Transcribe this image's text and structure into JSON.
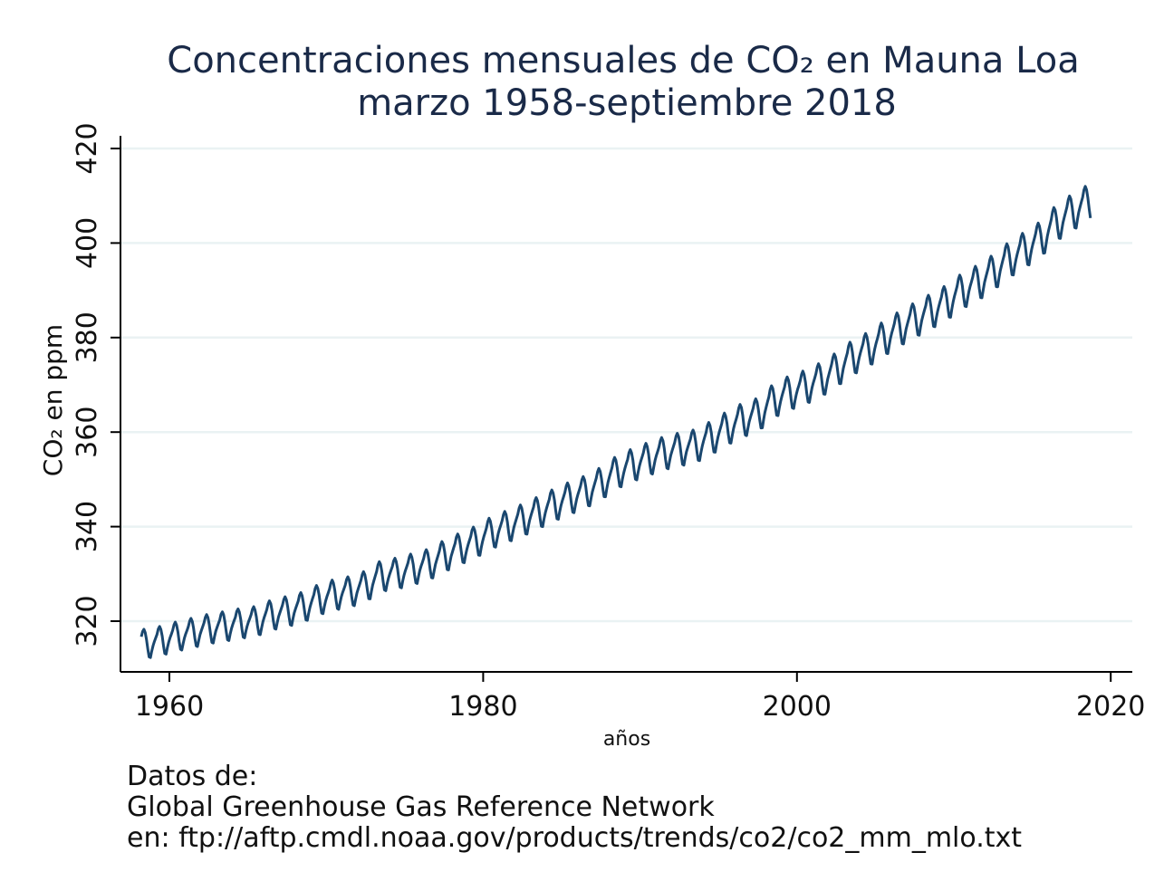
{
  "chart_data": {
    "type": "line",
    "title": "Concentraciones mensuales de CO₂ en Mauna Loa",
    "subtitle": "marzo 1958-septiembre 2018",
    "xlabel": "años",
    "ylabel": "CO₂ en ppm",
    "xlim": [
      1958,
      2021.5
    ],
    "ylim": [
      309,
      423
    ],
    "x_ticks": [
      1960,
      1980,
      2000,
      2020
    ],
    "y_ticks": [
      320,
      340,
      360,
      380,
      400,
      420
    ],
    "grid": "horizontal",
    "legend": "none",
    "line_color": "#1a476f",
    "grid_color": "#eaf2f3",
    "start": "1958-03",
    "end": "2018-09",
    "series": [
      {
        "annual_mean_years": [
          1958,
          1959,
          1960,
          1961,
          1962,
          1963,
          1964,
          1965,
          1966,
          1967,
          1968,
          1969,
          1970,
          1971,
          1972,
          1973,
          1974,
          1975,
          1976,
          1977,
          1978,
          1979,
          1980,
          1981,
          1982,
          1983,
          1984,
          1985,
          1986,
          1987,
          1988,
          1989,
          1990,
          1991,
          1992,
          1993,
          1994,
          1995,
          1996,
          1997,
          1998,
          1999,
          2000,
          2001,
          2002,
          2003,
          2004,
          2005,
          2006,
          2007,
          2008,
          2009,
          2010,
          2011,
          2012,
          2013,
          2014,
          2015,
          2016,
          2017,
          2018
        ],
        "annual_mean_ppm": [
          315.3,
          315.97,
          316.91,
          317.64,
          318.45,
          318.99,
          319.62,
          320.04,
          321.38,
          322.16,
          323.04,
          324.62,
          325.68,
          326.32,
          327.45,
          329.68,
          330.18,
          331.11,
          332.04,
          333.83,
          335.4,
          336.84,
          338.75,
          340.11,
          341.45,
          343.05,
          344.65,
          346.12,
          347.42,
          349.19,
          351.57,
          353.12,
          354.39,
          355.61,
          356.45,
          357.1,
          358.83,
          360.82,
          362.61,
          363.73,
          366.7,
          368.38,
          369.55,
          371.14,
          373.28,
          375.8,
          377.52,
          379.8,
          381.9,
          383.79,
          385.6,
          387.43,
          389.9,
          391.65,
          393.85,
          396.52,
          398.65,
          400.83,
          404.24,
          406.55,
          408.52
        ],
        "seasonal_cycle_ppm_jan_to_dec": [
          0.0,
          0.7,
          1.4,
          2.5,
          3.0,
          2.3,
          0.8,
          -1.3,
          -3.0,
          -3.2,
          -1.9,
          -0.8
        ]
      }
    ]
  },
  "notes": {
    "line1": "Datos de:",
    "line2": "Global Greenhouse Gas Reference Network",
    "line3": "en: ftp://aftp.cmdl.noaa.gov/products/trends/co2/co2_mm_mlo.txt"
  }
}
